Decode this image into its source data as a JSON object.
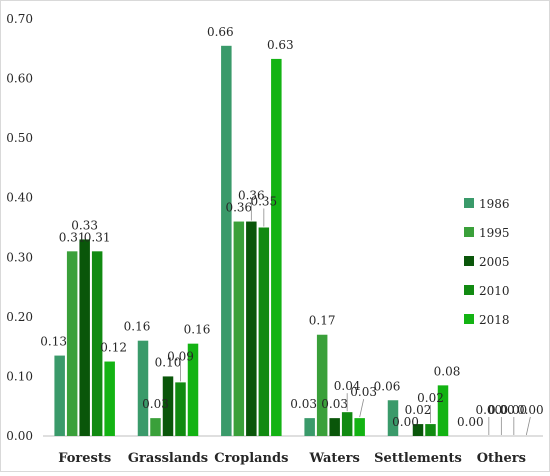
{
  "chart_data": {
    "type": "bar",
    "title": "",
    "xlabel": "",
    "ylabel": "",
    "ylim": [
      0,
      0.7
    ],
    "yticks": [
      "0.00",
      "0.10",
      "0.20",
      "0.30",
      "0.40",
      "0.50",
      "0.60",
      "0.70"
    ],
    "grid": false,
    "legend_position": "right",
    "categories": [
      "Forests",
      "Grasslands",
      "Croplands",
      "Waters",
      "Settlements",
      "Others"
    ],
    "series": [
      {
        "name": "1986",
        "color": "#3a9a6a",
        "values": [
          0.135,
          0.16,
          0.655,
          0.03,
          0.06,
          0.0
        ],
        "labels": [
          "0.13",
          "0.16",
          "0.66",
          "0.03",
          "0.06",
          "0.00"
        ]
      },
      {
        "name": "1995",
        "color": "#3aa03a",
        "values": [
          0.31,
          0.03,
          0.36,
          0.17,
          0.0,
          0.0
        ],
        "labels": [
          "0.31",
          "0.03",
          "0.36",
          "0.17",
          "0.00",
          "0.00"
        ]
      },
      {
        "name": "2005",
        "color": "#0a560a",
        "values": [
          0.33,
          0.1,
          0.36,
          0.03,
          0.02,
          0.0
        ],
        "labels": [
          "0.33",
          "0.10",
          "0.36",
          "0.03",
          "0.02",
          "0.00"
        ]
      },
      {
        "name": "2010",
        "color": "#118a11",
        "values": [
          0.31,
          0.09,
          0.35,
          0.04,
          0.02,
          0.0
        ],
        "labels": [
          "0.31",
          "0.09",
          "0.35",
          "0.04",
          "0.02",
          "0.00"
        ]
      },
      {
        "name": "2018",
        "color": "#13b313",
        "values": [
          0.125,
          0.155,
          0.633,
          0.03,
          0.085,
          0.0
        ],
        "labels": [
          "0.12",
          "0.16",
          "0.63",
          "0.03",
          "0.08",
          "0.00"
        ]
      }
    ]
  }
}
